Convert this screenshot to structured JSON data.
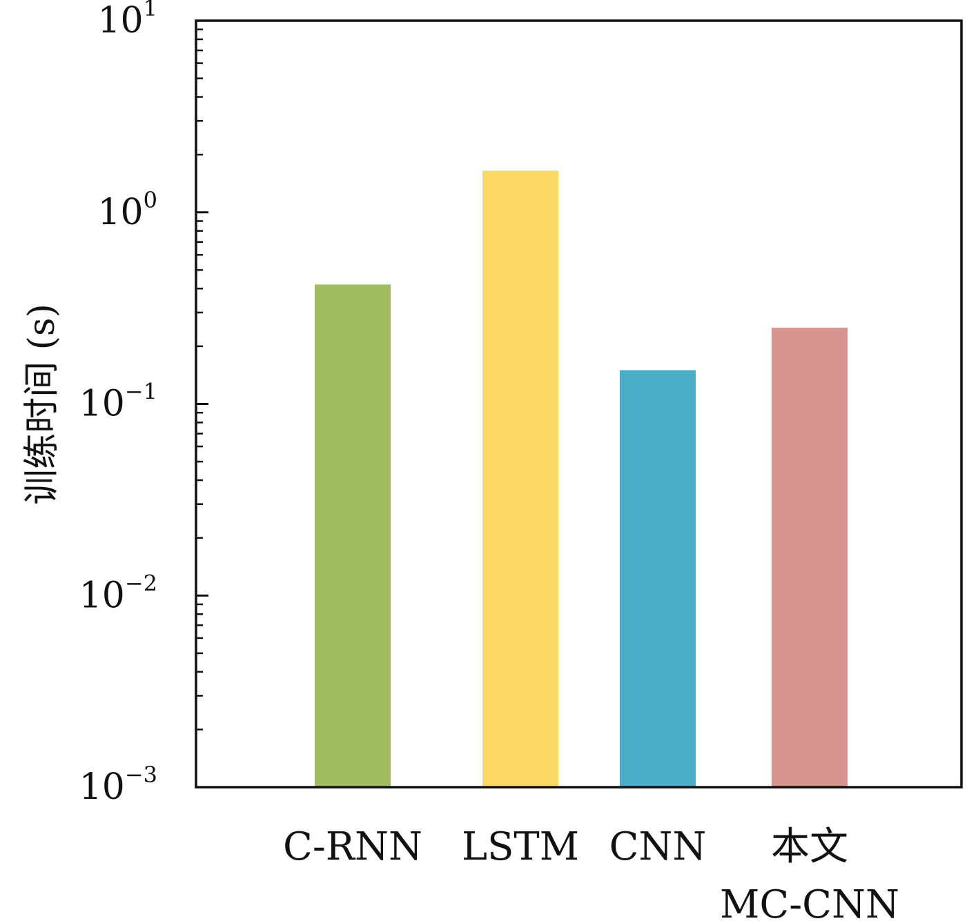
{
  "chart_data": {
    "type": "bar",
    "title": "",
    "xlabel": "",
    "ylabel": "训练时间 (s)",
    "yscale": "log",
    "ylim": [
      0.001,
      10
    ],
    "grid": false,
    "legend": "none",
    "categories": [
      [
        "C-RNN"
      ],
      [
        "LSTM"
      ],
      [
        "CNN"
      ],
      [
        "本文",
        "MC-CNN"
      ]
    ],
    "values": [
      0.42,
      1.65,
      0.15,
      0.25
    ],
    "colors": [
      "#9fbc61",
      "#fdd968",
      "#4badc5",
      "#d8948f"
    ],
    "y_ticks": [
      {
        "base": "10",
        "exp": "−3"
      },
      {
        "base": "10",
        "exp": "−2"
      },
      {
        "base": "10",
        "exp": "−1"
      },
      {
        "base": "10",
        "exp": "0"
      },
      {
        "base": "10",
        "exp": "1"
      }
    ]
  }
}
